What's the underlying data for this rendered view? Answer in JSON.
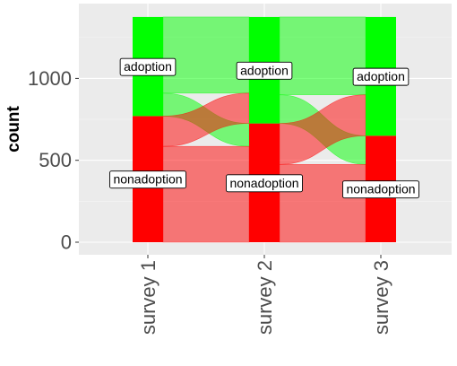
{
  "chart_data": {
    "type": "alluvial",
    "title": "",
    "xlabel": "",
    "ylabel": "count",
    "ylim": [
      0,
      1380
    ],
    "y_ticks": [
      0,
      500,
      1000
    ],
    "y_tick_labels": [
      "0",
      "500",
      "1000"
    ],
    "categories": [
      "survey 1",
      "survey 2",
      "survey 3"
    ],
    "strata": [
      "adoption",
      "nonadoption"
    ],
    "stratum_colors": {
      "adoption": "#00ff00",
      "nonadoption": "#ff0000"
    },
    "stratum_totals": [
      {
        "survey": "survey 1",
        "adoption": 605,
        "nonadoption": 770
      },
      {
        "survey": "survey 2",
        "adoption": 650,
        "nonadoption": 725
      },
      {
        "survey": "survey 3",
        "adoption": 725,
        "nonadoption": 650
      }
    ],
    "flows": [
      {
        "from_survey": "survey 1",
        "to_survey": "survey 2",
        "from": "adoption",
        "to": "adoption",
        "count": 465
      },
      {
        "from_survey": "survey 1",
        "to_survey": "survey 2",
        "from": "adoption",
        "to": "nonadoption",
        "count": 140
      },
      {
        "from_survey": "survey 1",
        "to_survey": "survey 2",
        "from": "nonadoption",
        "to": "adoption",
        "count": 185
      },
      {
        "from_survey": "survey 1",
        "to_survey": "survey 2",
        "from": "nonadoption",
        "to": "nonadoption",
        "count": 585
      },
      {
        "from_survey": "survey 2",
        "to_survey": "survey 3",
        "from": "adoption",
        "to": "adoption",
        "count": 475
      },
      {
        "from_survey": "survey 2",
        "to_survey": "survey 3",
        "from": "adoption",
        "to": "nonadoption",
        "count": 175
      },
      {
        "from_survey": "survey 2",
        "to_survey": "survey 3",
        "from": "nonadoption",
        "to": "adoption",
        "count": 250
      },
      {
        "from_survey": "survey 2",
        "to_survey": "survey 3",
        "from": "nonadoption",
        "to": "nonadoption",
        "count": 475
      }
    ],
    "grid": true,
    "legend": "none"
  }
}
